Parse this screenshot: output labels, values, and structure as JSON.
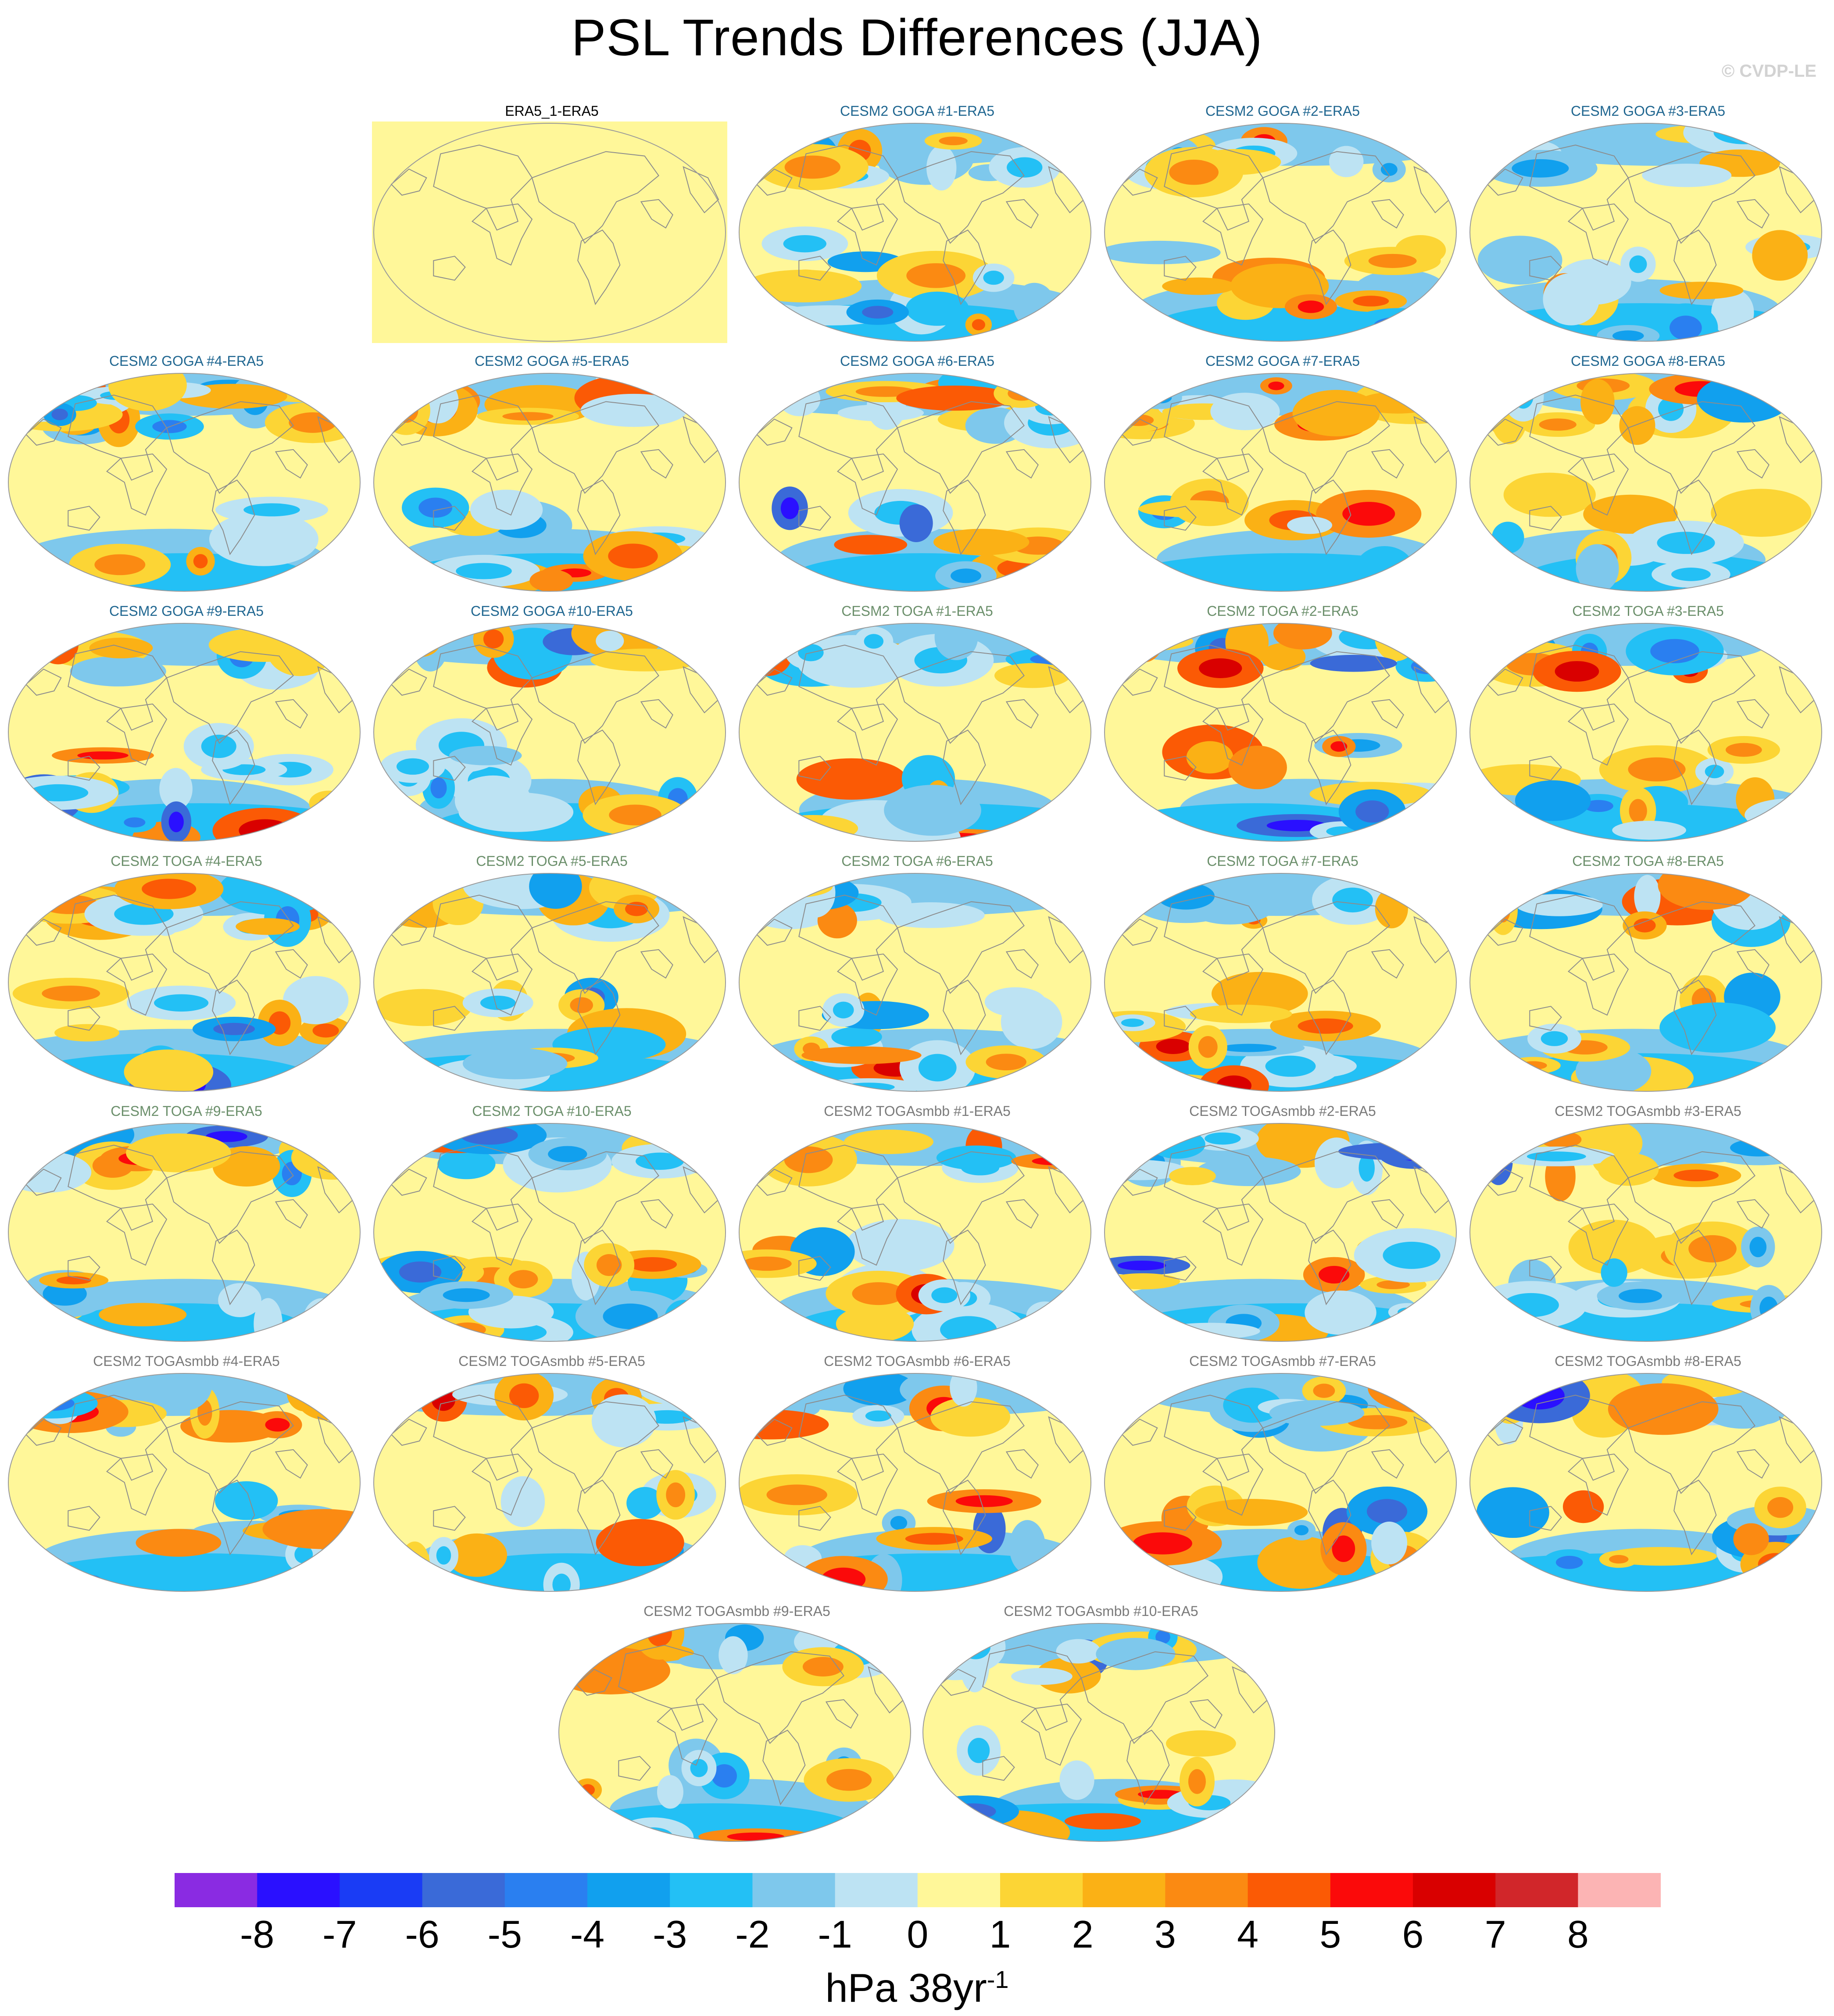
{
  "title": "PSL Trends Differences (JJA)",
  "watermark": "© CVDP-LE",
  "unit": "hPa 38yr",
  "unit_exponent": "-1",
  "colors": {
    "goga_title": "#1f6690",
    "toga_title": "#6b8f6b",
    "togasmbb_title": "#7a7a7a",
    "obs_title": "#000000",
    "coast": "#8c8c8c"
  },
  "colorbar": {
    "colors": [
      "#8a2be2",
      "#2a10ff",
      "#1a3cf5",
      "#3a6ad8",
      "#2a7ff0",
      "#11a0ee",
      "#23c0f5",
      "#7ec8ec",
      "#bde3f3",
      "#fff799",
      "#fcd535",
      "#fbb115",
      "#fb8a12",
      "#fb5a05",
      "#fb0a0a",
      "#d90000",
      "#d1262a",
      "#fcb4b4"
    ],
    "labels": [
      "-8",
      "-7",
      "-6",
      "-5",
      "-4",
      "-3",
      "-2",
      "-1",
      "0",
      "1",
      "2",
      "3",
      "4",
      "5",
      "6",
      "7",
      "8"
    ]
  },
  "panels": [
    {
      "title": "ERA5_1-ERA5",
      "group": "obs"
    },
    {
      "title": "CESM2 GOGA #1-ERA5",
      "group": "goga"
    },
    {
      "title": "CESM2 GOGA #2-ERA5",
      "group": "goga"
    },
    {
      "title": "CESM2 GOGA #3-ERA5",
      "group": "goga"
    },
    {
      "title": "CESM2 GOGA #4-ERA5",
      "group": "goga"
    },
    {
      "title": "CESM2 GOGA #5-ERA5",
      "group": "goga"
    },
    {
      "title": "CESM2 GOGA #6-ERA5",
      "group": "goga"
    },
    {
      "title": "CESM2 GOGA #7-ERA5",
      "group": "goga"
    },
    {
      "title": "CESM2 GOGA #8-ERA5",
      "group": "goga"
    },
    {
      "title": "CESM2 GOGA #9-ERA5",
      "group": "goga"
    },
    {
      "title": "CESM2 GOGA #10-ERA5",
      "group": "goga"
    },
    {
      "title": "CESM2 TOGA #1-ERA5",
      "group": "toga"
    },
    {
      "title": "CESM2 TOGA #2-ERA5",
      "group": "toga"
    },
    {
      "title": "CESM2 TOGA #3-ERA5",
      "group": "toga"
    },
    {
      "title": "CESM2 TOGA #4-ERA5",
      "group": "toga"
    },
    {
      "title": "CESM2 TOGA #5-ERA5",
      "group": "toga"
    },
    {
      "title": "CESM2 TOGA #6-ERA5",
      "group": "toga"
    },
    {
      "title": "CESM2 TOGA #7-ERA5",
      "group": "toga"
    },
    {
      "title": "CESM2 TOGA #8-ERA5",
      "group": "toga"
    },
    {
      "title": "CESM2 TOGA #9-ERA5",
      "group": "toga"
    },
    {
      "title": "CESM2 TOGA #10-ERA5",
      "group": "toga"
    },
    {
      "title": "CESM2 TOGAsmbb #1-ERA5",
      "group": "togasmbb"
    },
    {
      "title": "CESM2 TOGAsmbb #2-ERA5",
      "group": "togasmbb"
    },
    {
      "title": "CESM2 TOGAsmbb #3-ERA5",
      "group": "togasmbb"
    },
    {
      "title": "CESM2 TOGAsmbb #4-ERA5",
      "group": "togasmbb"
    },
    {
      "title": "CESM2 TOGAsmbb #5-ERA5",
      "group": "togasmbb"
    },
    {
      "title": "CESM2 TOGAsmbb #6-ERA5",
      "group": "togasmbb"
    },
    {
      "title": "CESM2 TOGAsmbb #7-ERA5",
      "group": "togasmbb"
    },
    {
      "title": "CESM2 TOGAsmbb #8-ERA5",
      "group": "togasmbb"
    },
    {
      "title": "CESM2 TOGAsmbb #9-ERA5",
      "group": "togasmbb"
    },
    {
      "title": "CESM2 TOGAsmbb #10-ERA5",
      "group": "togasmbb"
    }
  ],
  "chart_data": {
    "type": "heatmap",
    "title": "PSL Trends Differences (JJA)",
    "projection": "robinson",
    "colorbar_label": "hPa 38yr-1",
    "levels": [
      -8,
      -7,
      -6,
      -5,
      -4,
      -3,
      -2,
      -1,
      0,
      1,
      2,
      3,
      4,
      5,
      6,
      7,
      8
    ],
    "panel_count": 31,
    "layout": "7 rows: 4 + 5 + 5 + 5 + 5 + 5 + 2 panels"
  }
}
